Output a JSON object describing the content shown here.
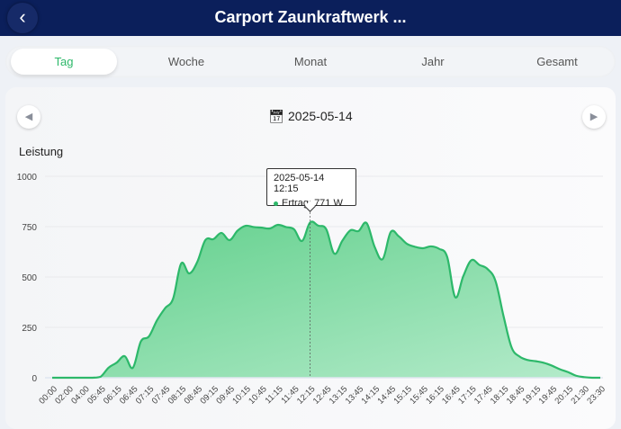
{
  "header": {
    "title": "Carport Zaunkraftwerk ...",
    "back_icon": "chevron-left-icon"
  },
  "tabs": [
    {
      "label": "Tag",
      "active": true
    },
    {
      "label": "Woche"
    },
    {
      "label": "Monat"
    },
    {
      "label": "Jahr"
    },
    {
      "label": "Gesamt"
    }
  ],
  "date_nav": {
    "date": "2025-05-14",
    "calendar_icon": "calendar-icon",
    "prev_icon": "triangle-left-icon",
    "next_icon": "triangle-right-icon"
  },
  "accent_color": "#2db86a",
  "tooltip": {
    "title": "2025-05-14 12:15",
    "label": "Ertrag: 771 W"
  },
  "chart_data": {
    "type": "area",
    "ylabel": "Leistung",
    "ylim": [
      0,
      1000
    ],
    "yticks": [
      0,
      250,
      500,
      750,
      1000
    ],
    "grid": true,
    "series_name": "Ertrag",
    "unit": "W",
    "color": "#2db86a",
    "xtick_labels": [
      "00:00",
      "02:00",
      "04:00",
      "05:45",
      "06:15",
      "06:45",
      "07:15",
      "07:45",
      "08:15",
      "08:45",
      "09:15",
      "09:45",
      "10:15",
      "10:45",
      "11:15",
      "11:45",
      "12:15",
      "12:45",
      "13:15",
      "13:45",
      "14:15",
      "14:45",
      "15:15",
      "15:45",
      "16:15",
      "16:45",
      "17:15",
      "17:45",
      "18:15",
      "18:45",
      "19:15",
      "19:45",
      "20:15",
      "21:30",
      "23:30"
    ],
    "x": [
      "00:00",
      "01:00",
      "02:00",
      "03:00",
      "04:00",
      "05:00",
      "05:45",
      "06:00",
      "06:15",
      "06:30",
      "06:45",
      "07:00",
      "07:15",
      "07:30",
      "07:45",
      "08:00",
      "08:15",
      "08:30",
      "08:45",
      "09:00",
      "09:15",
      "09:30",
      "09:45",
      "10:00",
      "10:15",
      "10:30",
      "10:45",
      "11:00",
      "11:15",
      "11:30",
      "11:45",
      "12:00",
      "12:15",
      "12:30",
      "12:45",
      "13:00",
      "13:15",
      "13:30",
      "13:45",
      "14:00",
      "14:15",
      "14:30",
      "14:45",
      "15:00",
      "15:15",
      "15:30",
      "15:45",
      "16:00",
      "16:15",
      "16:30",
      "16:45",
      "17:00",
      "17:15",
      "17:30",
      "17:45",
      "18:00",
      "18:15",
      "18:30",
      "18:45",
      "19:00",
      "19:15",
      "19:30",
      "19:45",
      "20:00",
      "20:15",
      "21:00",
      "21:30",
      "22:30",
      "23:30"
    ],
    "y": [
      0,
      0,
      0,
      0,
      0,
      0,
      5,
      50,
      75,
      107,
      49,
      180,
      205,
      285,
      345,
      393,
      567,
      518,
      575,
      683,
      688,
      719,
      683,
      730,
      754,
      748,
      745,
      741,
      759,
      748,
      737,
      679,
      771,
      755,
      737,
      616,
      680,
      732,
      728,
      768,
      650,
      589,
      723,
      702,
      665,
      650,
      643,
      652,
      640,
      600,
      400,
      504,
      583,
      560,
      540,
      480,
      305,
      150,
      105,
      88,
      82,
      74,
      60,
      42,
      28,
      10,
      3,
      0,
      0
    ],
    "highlight": "12:15"
  }
}
